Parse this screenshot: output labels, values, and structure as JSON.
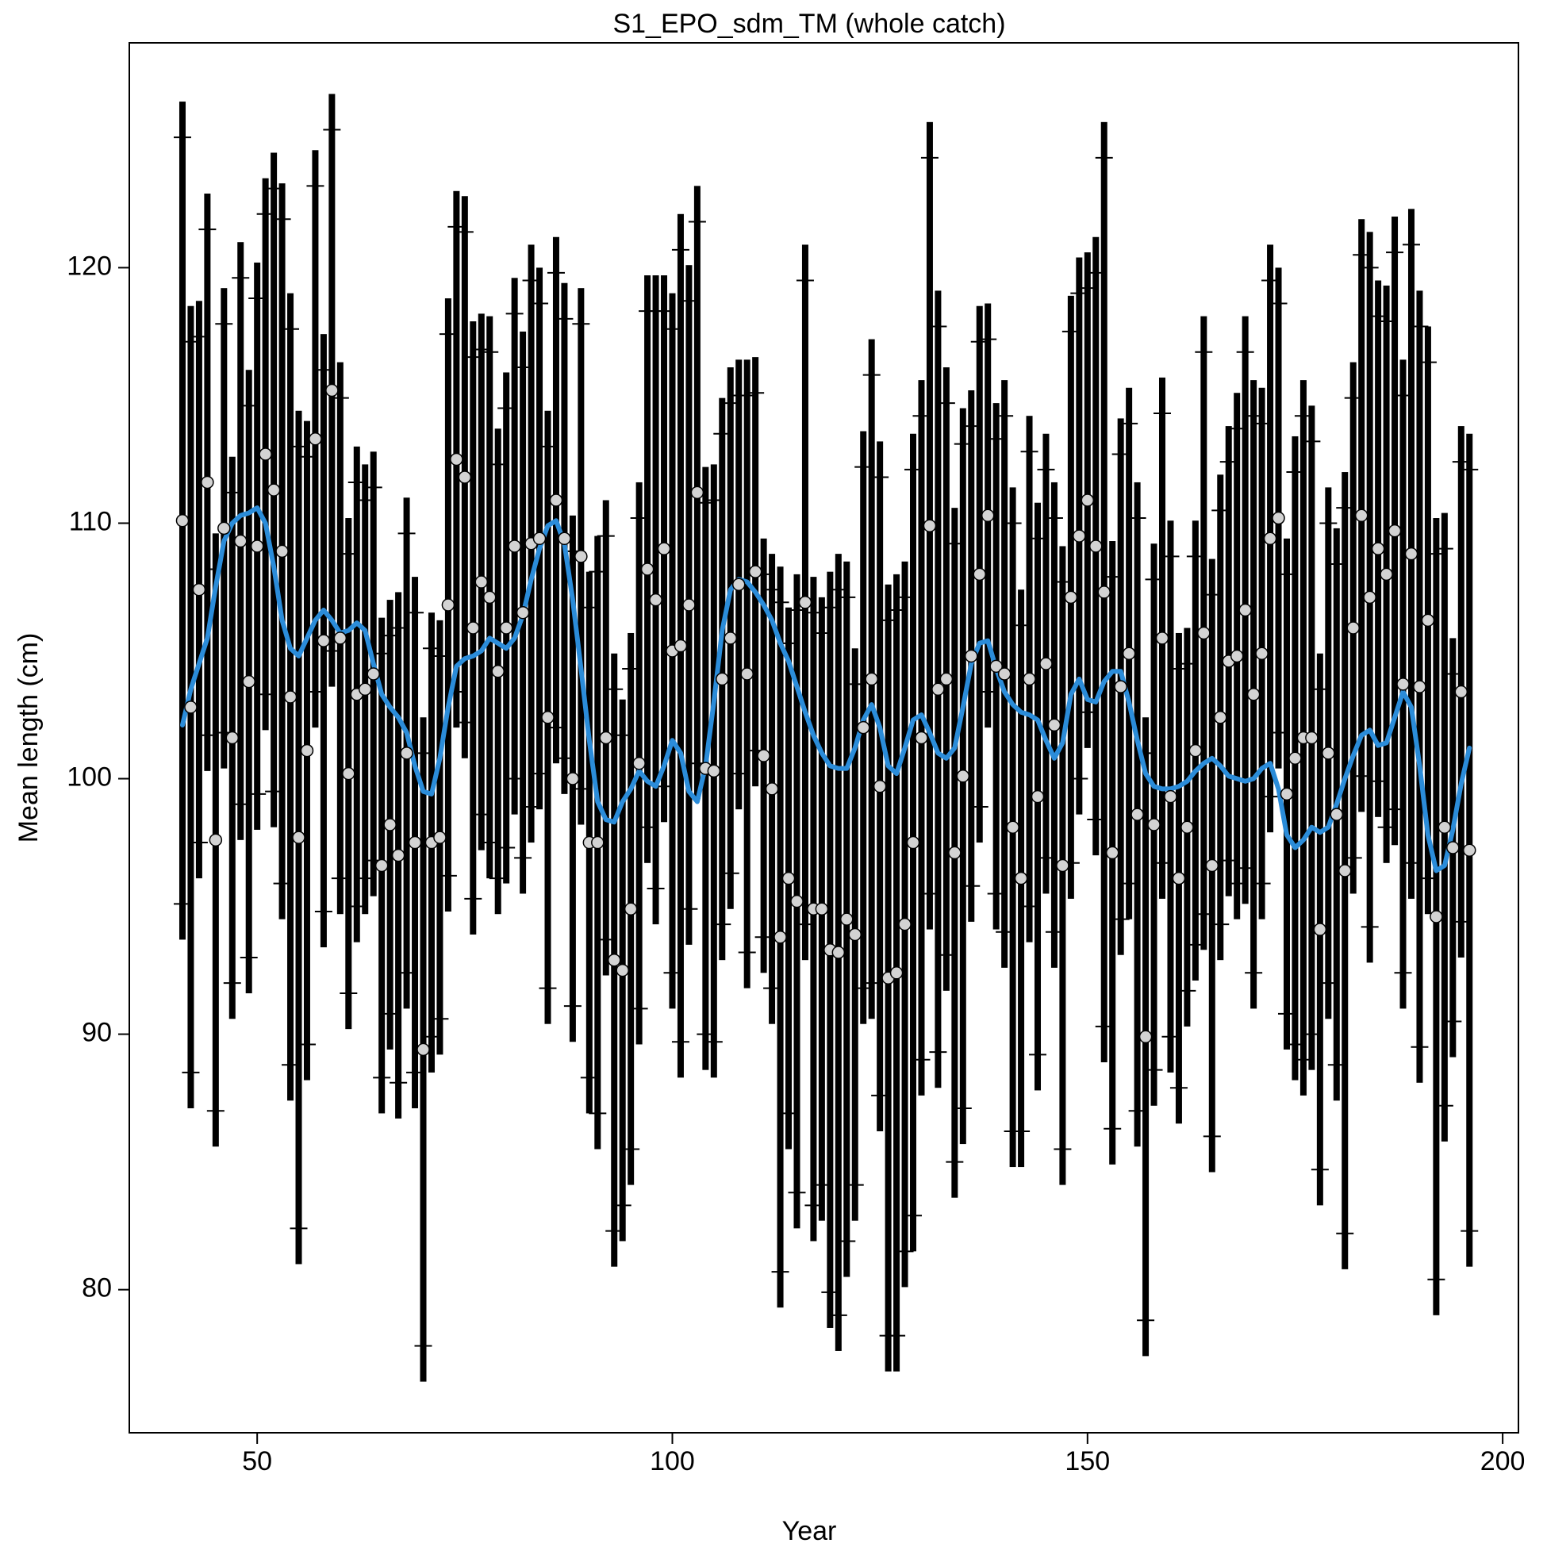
{
  "chart_data": {
    "type": "errorbar",
    "title": "S1_EPO_sdm_TM (whole catch)",
    "xlabel": "Year",
    "ylabel": "Mean length (cm)",
    "xlim": [
      34.6,
      201.9
    ],
    "ylim": [
      74.4,
      128.8
    ],
    "xticks": [
      50,
      100,
      150,
      200
    ],
    "yticks": [
      80,
      90,
      100,
      110,
      120
    ],
    "x": [
      41,
      42,
      43,
      44,
      45,
      46,
      47,
      48,
      49,
      50,
      51,
      52,
      53,
      54,
      55,
      56,
      57,
      58,
      59,
      60,
      61,
      62,
      63,
      64,
      65,
      66,
      67,
      68,
      69,
      70,
      71,
      72,
      73,
      74,
      75,
      76,
      77,
      78,
      79,
      80,
      81,
      82,
      83,
      84,
      85,
      86,
      87,
      88,
      89,
      90,
      91,
      92,
      93,
      94,
      95,
      96,
      97,
      98,
      99,
      100,
      101,
      102,
      103,
      104,
      105,
      106,
      107,
      108,
      109,
      110,
      111,
      112,
      113,
      114,
      115,
      116,
      117,
      118,
      119,
      120,
      121,
      122,
      123,
      124,
      125,
      126,
      127,
      128,
      129,
      130,
      131,
      132,
      133,
      134,
      135,
      136,
      137,
      138,
      139,
      140,
      141,
      142,
      143,
      144,
      145,
      146,
      147,
      148,
      149,
      150,
      151,
      152,
      153,
      154,
      155,
      156,
      157,
      158,
      159,
      160,
      161,
      162,
      163,
      164,
      165,
      166,
      167,
      168,
      169,
      170,
      171,
      172,
      173,
      174,
      175,
      176,
      177,
      178,
      179,
      180,
      181,
      182,
      183,
      184,
      185,
      186,
      187,
      188,
      189,
      190,
      191,
      192,
      193,
      194,
      195,
      196
    ],
    "series": [
      {
        "color": "#d3d3d3",
        "bar_color": "#000000",
        "values": [
          110.1,
          102.8,
          107.4,
          111.6,
          97.6,
          109.8,
          101.6,
          109.3,
          103.8,
          109.1,
          112.7,
          111.3,
          108.9,
          103.2,
          97.7,
          101.1,
          113.3,
          105.4,
          115.2,
          105.5,
          100.2,
          103.3,
          103.5,
          104.1,
          96.6,
          98.2,
          97.0,
          101.0,
          97.5,
          89.4,
          97.5,
          97.7,
          106.8,
          112.5,
          111.8,
          105.9,
          107.7,
          107.1,
          104.2,
          105.9,
          109.1,
          106.5,
          109.2,
          109.4,
          102.4,
          110.9,
          109.4,
          100.0,
          108.7,
          97.5,
          97.5,
          101.6,
          92.9,
          92.5,
          94.9,
          100.6,
          108.2,
          107.0,
          109.0,
          105.0,
          105.2,
          106.8,
          111.2,
          100.4,
          100.3,
          103.9,
          105.5,
          107.6,
          104.1,
          108.1,
          100.9,
          99.6,
          93.8,
          96.1,
          95.2,
          106.9,
          94.9,
          94.9,
          93.3,
          93.2,
          94.5,
          93.9,
          102.0,
          103.9,
          99.7,
          92.2,
          92.4,
          94.3,
          97.5,
          101.6,
          109.9,
          103.5,
          103.9,
          97.1,
          100.1,
          104.8,
          108.0,
          110.3,
          104.4,
          104.1,
          98.1,
          96.1,
          103.9,
          99.3,
          104.5,
          102.1,
          96.6,
          107.1,
          109.5,
          110.9,
          109.1,
          107.3,
          97.1,
          103.6,
          104.9,
          98.6,
          89.9,
          98.2,
          105.5,
          99.3,
          96.1,
          98.1,
          101.1,
          105.7,
          96.6,
          102.4,
          104.6,
          104.8,
          106.6,
          103.3,
          104.9,
          109.4,
          110.2,
          99.4,
          100.8,
          101.6,
          101.6,
          94.1,
          101.0,
          98.6,
          96.4,
          105.9,
          110.3,
          107.1,
          109.0,
          108.0,
          109.7,
          103.7,
          108.8,
          103.6,
          106.2,
          94.6,
          98.1,
          97.3,
          103.4,
          97.2
        ],
        "errors": [
          16.4,
          15.7,
          11.3,
          11.3,
          12,
          9.4,
          11,
          11.7,
          12.2,
          11.1,
          10.8,
          13.2,
          14.4,
          15.8,
          16.7,
          12.9,
          11.3,
          12,
          11.6,
          10.8,
          10,
          9.7,
          8.8,
          8.7,
          9.7,
          8.8,
          10.3,
          10,
          10.4,
          13,
          9,
          8.5,
          12,
          10.5,
          11,
          12,
          10.5,
          11,
          9.5,
          10,
          10.5,
          11,
          11.7,
          10.6,
          12,
          10.3,
          10,
          10.3,
          10.5,
          10.6,
          12,
          9.3,
          12,
          10.6,
          10.8,
          11,
          11.5,
          12.7,
          10.7,
          14,
          16.9,
          13.3,
          12,
          11.8,
          12,
          11,
          10.6,
          8.8,
          12.3,
          8.4,
          8.5,
          9.2,
          14.5,
          10.6,
          12.8,
          14,
          13,
          12.2,
          14.8,
          15.6,
          14,
          11.2,
          11.6,
          13.3,
          13.5,
          15.4,
          15.6,
          14.2,
          16,
          14,
          15.8,
          15.6,
          12.2,
          13.5,
          14.4,
          10.4,
          10.5,
          8.3,
          10.3,
          11.5,
          13.3,
          11.3,
          10.3,
          11.5,
          9,
          9.5,
          12.5,
          11.8,
          10.9,
          9.7,
          12.1,
          18.4,
          12.2,
          10.5,
          10.4,
          13,
          12.5,
          11,
          10.2,
          10.8,
          9.6,
          7.8,
          9,
          12.4,
          12,
          9.5,
          9.2,
          10.3,
          11.5,
          12.3,
          10.4,
          11.5,
          9.8,
          10,
          12.6,
          14,
          13,
          10.8,
          10.4,
          11.2,
          15.6,
          10.4,
          11.6,
          14.3,
          10.5,
          11.3,
          12.3,
          12.7,
          13.5,
          15.5,
          11.5,
          15.6,
          12.3,
          8.2,
          10.4,
          16.3
        ],
        "errors_inner": [
          15,
          14.3,
          9.9,
          9.9,
          10.6,
          8,
          9.6,
          10.3,
          10.8,
          9.7,
          9.4,
          11.8,
          13,
          14.4,
          15.3,
          11.5,
          9.9,
          10.6,
          10.2,
          9.4,
          8.6,
          8.3,
          7.4,
          7.3,
          8.3,
          7.4,
          8.9,
          8.6,
          9,
          11.6,
          7.6,
          7.1,
          10.6,
          9.1,
          9.6,
          10.6,
          9.1,
          9.6,
          8.1,
          8.6,
          9.1,
          9.6,
          10.3,
          9.2,
          10.6,
          8.9,
          8.6,
          8.9,
          9.1,
          9.2,
          10.6,
          7.9,
          10.6,
          9.2,
          9.4,
          9.6,
          10.1,
          11.3,
          9.3,
          12.6,
          15.5,
          11.9,
          10.6,
          10.4,
          10.6,
          9.6,
          9.2,
          7.4,
          10.9,
          7,
          7.1,
          7.8,
          13.1,
          9.2,
          11.4,
          12.6,
          11.6,
          10.8,
          13.4,
          14.2,
          12.6,
          9.8,
          10.2,
          11.9,
          12.1,
          14,
          14.2,
          12.8,
          14.6,
          12.6,
          14.4,
          14.2,
          10.8,
          12.1,
          13,
          9,
          9.1,
          6.9,
          8.9,
          10.1,
          11.9,
          9.9,
          8.9,
          10.1,
          7.6,
          8.1,
          11.1,
          10.4,
          9.5,
          8.3,
          10.7,
          17,
          10.8,
          9.1,
          9,
          11.6,
          11.1,
          9.6,
          8.8,
          9.4,
          8.2,
          6.4,
          7.6,
          11,
          10.6,
          8.1,
          7.8,
          8.9,
          10.1,
          10.9,
          9,
          10.1,
          8.4,
          8.6,
          11.2,
          12.6,
          11.6,
          9.4,
          9,
          9.8,
          14.2,
          9,
          10.2,
          12.9,
          9.1,
          9.9,
          10.9,
          11.3,
          12.1,
          14.1,
          10.1,
          14.2,
          10.9,
          6.8,
          9,
          14.9
        ]
      },
      {
        "color": "#2b8cd9",
        "values": [
          102.1,
          103.5,
          104.5,
          105.5,
          107.5,
          109.3,
          110.0,
          110.3,
          110.4,
          110.6,
          110.0,
          108.3,
          106.2,
          105.1,
          104.8,
          105.5,
          106.2,
          106.6,
          106.2,
          105.7,
          105.8,
          106.1,
          105.8,
          104.5,
          103.3,
          102.8,
          102.4,
          101.8,
          100.5,
          99.5,
          99.4,
          100.8,
          102.8,
          104.4,
          104.7,
          104.8,
          105.0,
          105.5,
          105.3,
          105.1,
          105.5,
          106.4,
          107.8,
          109.0,
          109.9,
          110.1,
          109.2,
          107.0,
          104.3,
          101.5,
          99.1,
          98.4,
          98.3,
          99.1,
          99.6,
          100.3,
          99.9,
          99.7,
          100.5,
          101.5,
          101.0,
          99.5,
          99.1,
          100.5,
          103.0,
          105.8,
          107.4,
          107.8,
          107.7,
          107.3,
          106.8,
          106.2,
          105.3,
          104.6,
          103.6,
          102.6,
          101.7,
          101.0,
          100.5,
          100.4,
          100.4,
          101.2,
          102.3,
          102.9,
          102.0,
          100.5,
          100.2,
          101.2,
          102.3,
          102.5,
          101.8,
          101.0,
          100.8,
          101.2,
          102.8,
          104.5,
          105.3,
          105.4,
          104.3,
          103.4,
          102.9,
          102.6,
          102.5,
          102.3,
          101.5,
          100.8,
          101.4,
          103.3,
          103.9,
          103.1,
          103.0,
          103.8,
          104.2,
          104.2,
          103.0,
          101.5,
          100.2,
          99.7,
          99.6,
          99.6,
          99.7,
          99.9,
          100.3,
          100.6,
          100.8,
          100.5,
          100.1,
          100.0,
          99.9,
          100.0,
          100.4,
          100.6,
          99.6,
          97.8,
          97.3,
          97.6,
          98.1,
          97.9,
          98.1,
          99.0,
          100.0,
          100.9,
          101.7,
          101.9,
          101.3,
          101.4,
          102.4,
          103.4,
          102.8,
          100.5,
          97.8,
          96.4,
          96.6,
          98.0,
          99.8,
          101.2
        ]
      }
    ]
  }
}
